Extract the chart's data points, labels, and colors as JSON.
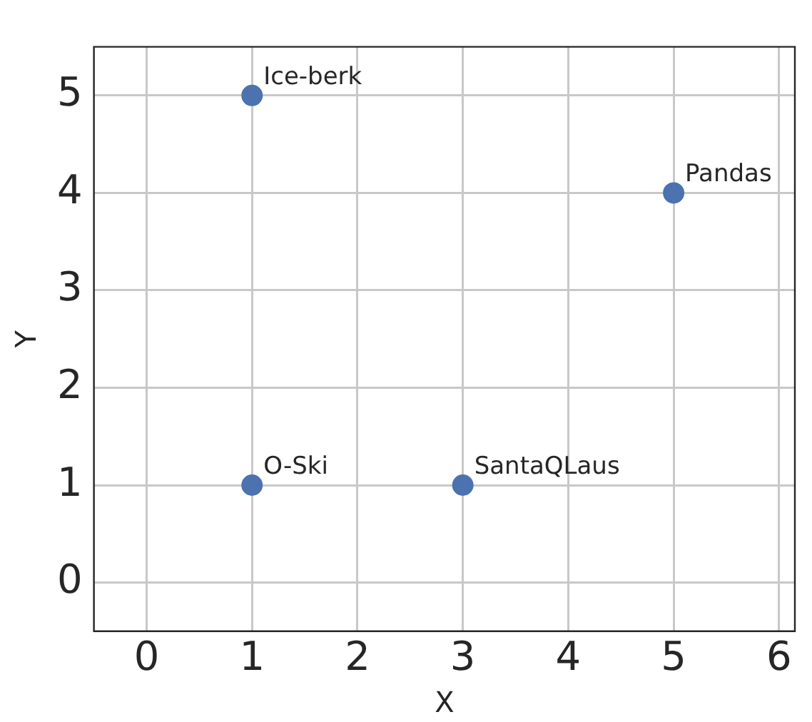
{
  "chart_data": {
    "type": "scatter",
    "xlabel": "X",
    "ylabel": "Y",
    "x": [
      1,
      5,
      1,
      3
    ],
    "series": [
      {
        "color": "#4c72b0",
        "values": [
          5,
          4,
          1,
          1
        ]
      }
    ],
    "annotations": [
      {
        "text": "Ice-berk",
        "x": 1,
        "y": 5
      },
      {
        "text": "Pandas",
        "x": 5,
        "y": 4
      },
      {
        "text": "O-Ski",
        "x": 1,
        "y": 1
      },
      {
        "text": "SantaQLaus",
        "x": 3,
        "y": 1
      }
    ],
    "xlim": [
      -0.5,
      6.15
    ],
    "ylim": [
      -0.5,
      5.5
    ],
    "xticks": [
      0,
      1,
      2,
      3,
      4,
      5,
      6
    ],
    "yticks": [
      0,
      1,
      2,
      3,
      4,
      5
    ],
    "grid": true,
    "legend": false,
    "marker": "circle"
  }
}
